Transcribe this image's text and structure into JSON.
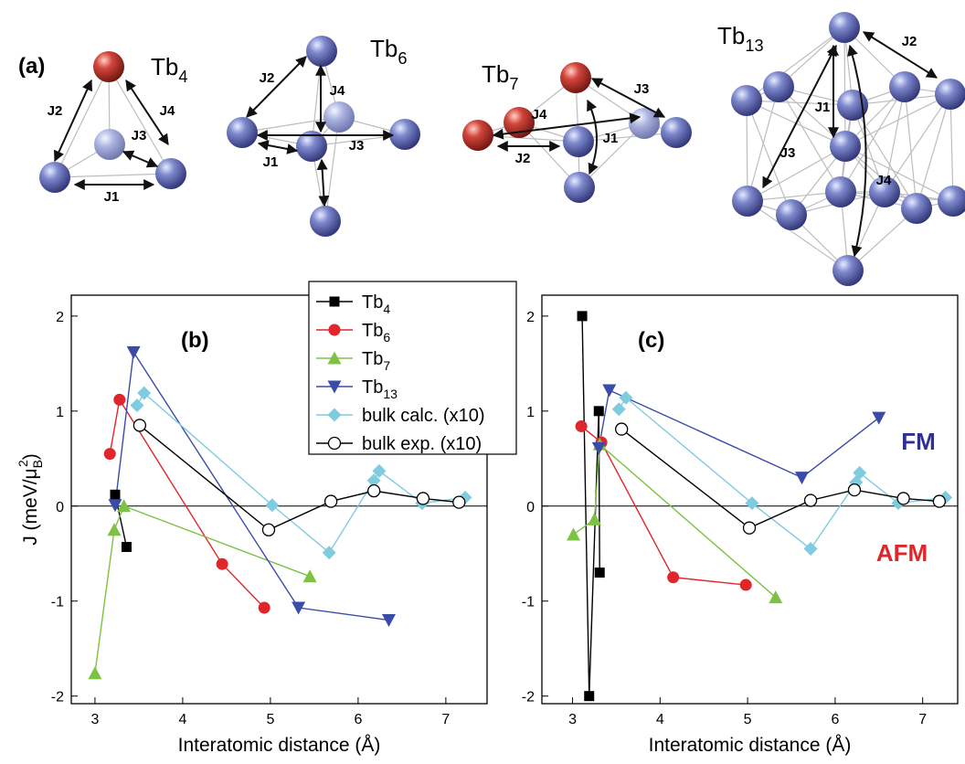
{
  "diagram": {
    "panel_label": "(a)",
    "clusters": [
      {
        "label": "Tb4",
        "bonds": [
          "J1",
          "J2",
          "J3",
          "J4"
        ]
      },
      {
        "label": "Tb6",
        "bonds": [
          "J1",
          "J2",
          "J3",
          "J4"
        ]
      },
      {
        "label": "Tb7",
        "bonds": [
          "J1",
          "J2",
          "J3",
          "J4"
        ]
      },
      {
        "label": "Tb13",
        "bonds": [
          "J1",
          "J2",
          "J3",
          "J4"
        ]
      }
    ]
  },
  "chart_data": [
    {
      "type": "line",
      "panel_label": "(b)",
      "xlabel": "Interatomic distance (Å)",
      "ylabel": [
        "J (meV/μ",
        "B",
        "2",
        ")"
      ],
      "xlim": [
        2.73,
        7.47
      ],
      "ylim": [
        -2.08,
        2.22
      ],
      "xticks": [
        3,
        4,
        5,
        6,
        7
      ],
      "yticks": [
        -2,
        -1,
        0,
        1,
        2
      ],
      "zero_line": true,
      "legend": "top-right",
      "series": [
        {
          "name": "Tb4",
          "color": "#000000",
          "marker": "square",
          "x": [
            3.23,
            3.36
          ],
          "values": [
            0.12,
            -0.43
          ]
        },
        {
          "name": "Tb6",
          "color": "#e0262a",
          "marker": "circle",
          "x": [
            3.17,
            3.28,
            4.45,
            4.93
          ],
          "values": [
            0.55,
            1.12,
            -0.61,
            -1.07
          ]
        },
        {
          "name": "Tb7",
          "color": "#7dc242",
          "marker": "triangle-up",
          "x": [
            3.0,
            3.22,
            3.33,
            5.45
          ],
          "values": [
            -1.76,
            -0.25,
            0.0,
            -0.74
          ]
        },
        {
          "name": "Tb13",
          "color": "#3b4ba8",
          "marker": "triangle-down",
          "x": [
            3.23,
            3.44,
            5.32,
            6.35
          ],
          "values": [
            0.01,
            1.62,
            -1.07,
            -1.2
          ]
        },
        {
          "name": "bulk calc. (x10)",
          "color": "#7fcbe0",
          "marker": "diamond",
          "x": [
            3.48,
            3.56,
            5.02,
            5.67,
            6.18,
            6.24,
            6.73,
            7.22
          ],
          "values": [
            1.06,
            1.19,
            0.01,
            -0.49,
            0.27,
            0.37,
            0.03,
            0.09
          ]
        },
        {
          "name": "bulk exp. (x10)",
          "color": "#000000",
          "marker": "open-circle",
          "x": [
            3.51,
            4.98,
            5.69,
            6.18,
            6.74,
            7.15
          ],
          "values": [
            0.85,
            -0.25,
            0.05,
            0.16,
            0.08,
            0.04
          ]
        }
      ]
    },
    {
      "type": "line",
      "panel_label": "(c)",
      "xlabel": "Interatomic distance (Å)",
      "xlim": [
        2.65,
        7.4
      ],
      "ylim": [
        -2.08,
        2.22
      ],
      "xticks": [
        3,
        4,
        5,
        6,
        7
      ],
      "yticks": [
        -2,
        -1,
        0,
        1,
        2
      ],
      "zero_line": true,
      "annotations": [
        {
          "text": "FM",
          "color": "#2e3192"
        },
        {
          "text": "AFM",
          "color": "#e0262a"
        }
      ],
      "series": [
        {
          "color": "#000000",
          "marker": "square",
          "x": [
            3.11,
            3.19,
            3.3,
            3.31
          ],
          "values": [
            2.0,
            -2.0,
            1.0,
            -0.7
          ]
        },
        {
          "color": "#e0262a",
          "marker": "circle",
          "x": [
            3.1,
            3.33,
            4.15,
            4.98
          ],
          "values": [
            0.84,
            0.67,
            -0.75,
            -0.83
          ]
        },
        {
          "color": "#7dc242",
          "marker": "triangle-up",
          "x": [
            3.01,
            3.25,
            3.31,
            5.32
          ],
          "values": [
            -0.3,
            -0.14,
            0.65,
            -0.96
          ]
        },
        {
          "color": "#3b4ba8",
          "marker": "triangle-down",
          "x": [
            3.3,
            3.42,
            5.62,
            6.5
          ],
          "values": [
            0.61,
            1.22,
            0.3,
            0.93
          ]
        },
        {
          "color": "#7fcbe0",
          "marker": "diamond",
          "x": [
            3.53,
            3.61,
            5.05,
            5.72,
            6.24,
            6.28,
            6.72,
            7.26
          ],
          "values": [
            1.02,
            1.14,
            0.03,
            -0.45,
            0.25,
            0.35,
            0.03,
            0.09
          ]
        },
        {
          "color": "#000000",
          "marker": "open-circle",
          "x": [
            3.56,
            5.02,
            5.72,
            6.22,
            6.78,
            7.19
          ],
          "values": [
            0.81,
            -0.23,
            0.06,
            0.17,
            0.08,
            0.05
          ]
        }
      ]
    }
  ]
}
